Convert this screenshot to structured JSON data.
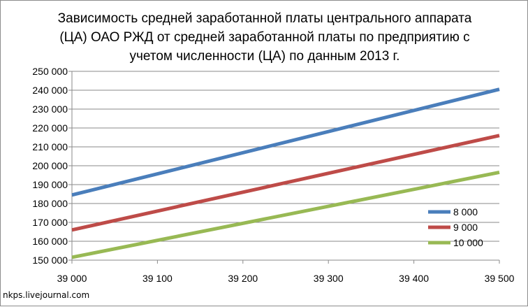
{
  "title_lines": [
    "Зависимость средней заработанной платы центрального аппарата",
    "(ЦА) ОАО РЖД от средней заработанной платы по предприятию с",
    "учетом численности (ЦА) по данным 2013 г."
  ],
  "watermark": "nkps.livejournal.com",
  "chart_data": {
    "type": "line",
    "title": "Зависимость средней заработанной платы центрального аппарата (ЦА) ОАО РЖД от средней заработанной платы по предприятию с учетом численности (ЦА) по данным 2013 г.",
    "xlabel": "",
    "ylabel": "",
    "x": [
      39000,
      39500
    ],
    "xlim": [
      39000,
      39500
    ],
    "ylim": [
      150000,
      250000
    ],
    "x_ticks": [
      "39 000",
      "39 100",
      "39 200",
      "39 300",
      "39 400",
      "39 500"
    ],
    "x_tick_values": [
      39000,
      39100,
      39200,
      39300,
      39400,
      39500
    ],
    "y_ticks": [
      "150 000",
      "160 000",
      "170 000",
      "180 000",
      "190 000",
      "200 000",
      "210 000",
      "220 000",
      "230 000",
      "240 000",
      "250 000"
    ],
    "y_tick_values": [
      150000,
      160000,
      170000,
      180000,
      190000,
      200000,
      210000,
      220000,
      230000,
      240000,
      250000
    ],
    "grid": "horizontal",
    "legend": "right",
    "series": [
      {
        "name": "8 000",
        "color": "#4a7ebb",
        "values": [
          184500,
          240500
        ]
      },
      {
        "name": "9 000",
        "color": "#be4b48",
        "values": [
          166000,
          216000
        ]
      },
      {
        "name": "10 000",
        "color": "#98b954",
        "values": [
          151500,
          196500
        ]
      }
    ]
  }
}
